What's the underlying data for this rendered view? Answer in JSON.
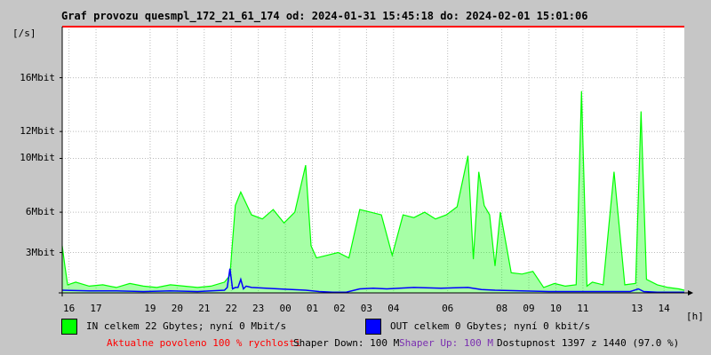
{
  "title": "Graf provozu quesmpl_172_21_61_174 od: 2024-01-31 15:45:18 do: 2024-02-01 15:01:06",
  "yunit": "[/s]",
  "xunit": "[h]",
  "colors": {
    "in": "#00ff00",
    "out": "#0000ff",
    "max": "#ff0000",
    "allowed": "#ff0000",
    "shaper_up": "#7a2fb0",
    "plot_bg": "#ffffff"
  },
  "chart_data": {
    "type": "area",
    "ylim": [
      0,
      19.8
    ],
    "yticks": [
      {
        "label": "3Mbit",
        "value": 3
      },
      {
        "label": "6Mbit",
        "value": 6
      },
      {
        "label": "10Mbit",
        "value": 10
      },
      {
        "label": "12Mbit",
        "value": 12
      },
      {
        "label": "16Mbit",
        "value": 16
      }
    ],
    "xticks": [
      {
        "label": "16",
        "hour": 0.25
      },
      {
        "label": "17",
        "hour": 1.25
      },
      {
        "label": "19",
        "hour": 3.25
      },
      {
        "label": "20",
        "hour": 4.25
      },
      {
        "label": "21",
        "hour": 5.25
      },
      {
        "label": "22",
        "hour": 6.25
      },
      {
        "label": "23",
        "hour": 7.25
      },
      {
        "label": "00",
        "hour": 8.25
      },
      {
        "label": "01",
        "hour": 9.25
      },
      {
        "label": "02",
        "hour": 10.25
      },
      {
        "label": "03",
        "hour": 11.25
      },
      {
        "label": "04",
        "hour": 12.25
      },
      {
        "label": "06",
        "hour": 14.25
      },
      {
        "label": "08",
        "hour": 16.25
      },
      {
        "label": "09",
        "hour": 17.25
      },
      {
        "label": "10",
        "hour": 18.25
      },
      {
        "label": "11",
        "hour": 19.25
      },
      {
        "label": "13",
        "hour": 21.25
      },
      {
        "label": "14",
        "hour": 22.25
      }
    ],
    "series": [
      {
        "name": "IN",
        "x": [
          0,
          0.1,
          0.2,
          0.5,
          1,
          1.5,
          2,
          2.5,
          3,
          3.5,
          4,
          4.5,
          5,
          5.5,
          6,
          6.2,
          6.4,
          6.6,
          7,
          7.4,
          7.8,
          8.2,
          8.6,
          9,
          9.2,
          9.4,
          9.8,
          10.2,
          10.6,
          11,
          11.4,
          11.8,
          12.2,
          12.6,
          13,
          13.4,
          13.8,
          14.2,
          14.6,
          15,
          15.2,
          15.4,
          15.6,
          15.8,
          16,
          16.2,
          16.6,
          17,
          17.4,
          17.8,
          18.2,
          18.6,
          19,
          19.2,
          19.4,
          19.6,
          20,
          20.4,
          20.8,
          21.2,
          21.4,
          21.6,
          22,
          22.4,
          22.8,
          23
        ],
        "values": [
          3.5,
          2.0,
          0.6,
          0.8,
          0.5,
          0.6,
          0.4,
          0.7,
          0.5,
          0.4,
          0.6,
          0.5,
          0.4,
          0.5,
          0.8,
          1.3,
          6.5,
          7.5,
          5.8,
          5.5,
          6.2,
          5.2,
          6.0,
          9.5,
          3.5,
          2.6,
          2.8,
          3.0,
          2.6,
          6.2,
          6.0,
          5.8,
          2.8,
          5.8,
          5.6,
          6.0,
          5.5,
          5.8,
          6.4,
          10.2,
          2.5,
          9.0,
          6.5,
          5.8,
          2.0,
          6.0,
          1.5,
          1.4,
          1.6,
          0.4,
          0.7,
          0.5,
          0.6,
          15.0,
          0.5,
          0.8,
          0.6,
          9.0,
          0.6,
          0.7,
          13.5,
          1.0,
          0.6,
          0.4,
          0.3,
          0.2
        ]
      },
      {
        "name": "OUT",
        "x": [
          0,
          1,
          2,
          3,
          4,
          5,
          6,
          6.1,
          6.2,
          6.3,
          6.4,
          6.5,
          6.6,
          6.7,
          6.8,
          7,
          8,
          9,
          9.5,
          10,
          10.5,
          11,
          11.5,
          12,
          13,
          14,
          15,
          15.5,
          16,
          17,
          18,
          19,
          20,
          21,
          21.3,
          21.5,
          22,
          23
        ],
        "values": [
          0.2,
          0.15,
          0.15,
          0.1,
          0.15,
          0.1,
          0.2,
          0.4,
          1.8,
          0.3,
          0.4,
          0.4,
          1.0,
          0.3,
          0.5,
          0.4,
          0.3,
          0.2,
          0.1,
          0.05,
          0.05,
          0.3,
          0.35,
          0.3,
          0.4,
          0.35,
          0.4,
          0.25,
          0.2,
          0.15,
          0.1,
          0.1,
          0.1,
          0.1,
          0.3,
          0.1,
          0.05,
          0.05
        ]
      }
    ],
    "max_line": 19.8
  },
  "legend": {
    "in_label": "IN celkem 22 Gbytes; nyní 0 Mbit/s",
    "out_label": "OUT celkem 0 Gbytes; nyní 0 kbit/s"
  },
  "footer": {
    "allowed": "Aktualne povoleno 100 % rychlosti",
    "shaper_down": "Shaper Down: 100 M",
    "shaper_up": "Shaper Up: 100 M",
    "availability": "Dostupnost 1397 z 1440 (97.0 %)"
  }
}
